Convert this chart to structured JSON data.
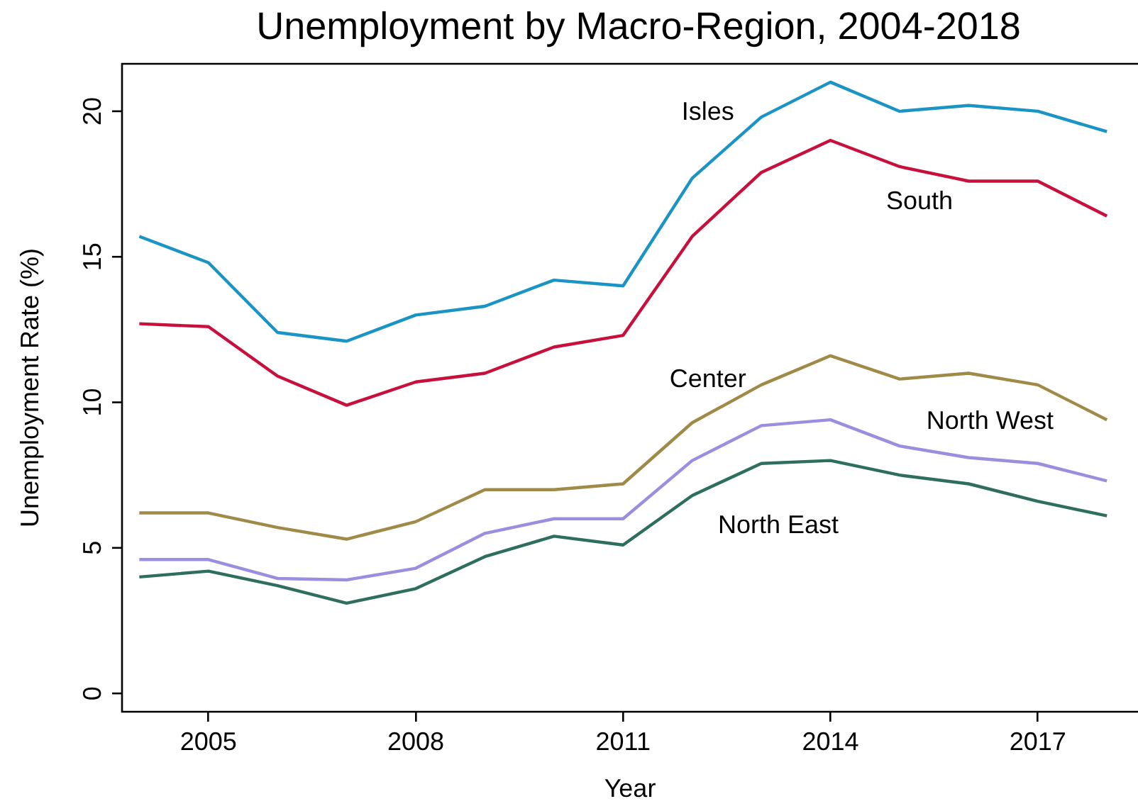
{
  "chart_data": {
    "type": "line",
    "title": "Unemployment by Macro-Region, 2004-2018",
    "xlabel": "Year",
    "ylabel": "Unemployment Rate (%)",
    "x": [
      2004,
      2005,
      2006,
      2007,
      2008,
      2009,
      2010,
      2011,
      2012,
      2013,
      2014,
      2015,
      2016,
      2017,
      2018
    ],
    "series": [
      {
        "name": "Isles",
        "color": "#1a94c4",
        "values": [
          15.7,
          14.8,
          12.4,
          12.1,
          13.0,
          13.3,
          14.2,
          14.0,
          17.7,
          19.8,
          21.0,
          20.0,
          20.2,
          20.0,
          19.3
        ]
      },
      {
        "name": "South",
        "color": "#c8103c",
        "values": [
          12.7,
          12.6,
          10.9,
          9.9,
          10.7,
          11.0,
          11.9,
          12.3,
          15.7,
          17.9,
          19.0,
          18.1,
          17.6,
          17.6,
          16.4
        ]
      },
      {
        "name": "Center",
        "color": "#a08a48",
        "values": [
          6.2,
          6.2,
          5.7,
          5.3,
          5.9,
          7.0,
          7.0,
          7.2,
          9.3,
          10.6,
          11.6,
          10.8,
          11.0,
          10.6,
          9.4
        ]
      },
      {
        "name": "North West",
        "color": "#9a8ede",
        "values": [
          4.6,
          4.6,
          3.95,
          3.9,
          4.3,
          5.5,
          6.0,
          6.0,
          8.0,
          9.2,
          9.4,
          8.5,
          8.1,
          7.9,
          7.3
        ]
      },
      {
        "name": "North East",
        "color": "#2e6e5e",
        "values": [
          4.0,
          4.2,
          3.7,
          3.1,
          3.6,
          4.7,
          5.4,
          5.1,
          6.8,
          7.9,
          8.0,
          7.5,
          7.2,
          6.6,
          6.1
        ]
      }
    ],
    "xlim": [
      2003.75,
      2018.45
    ],
    "xticks": [
      2005,
      2008,
      2011,
      2014,
      2017
    ],
    "ylim": [
      -0.63,
      21.63
    ],
    "yticks": [
      0,
      5,
      10,
      15,
      20
    ],
    "grid": false,
    "legend": false,
    "marker": "none",
    "line_style": "solid"
  }
}
